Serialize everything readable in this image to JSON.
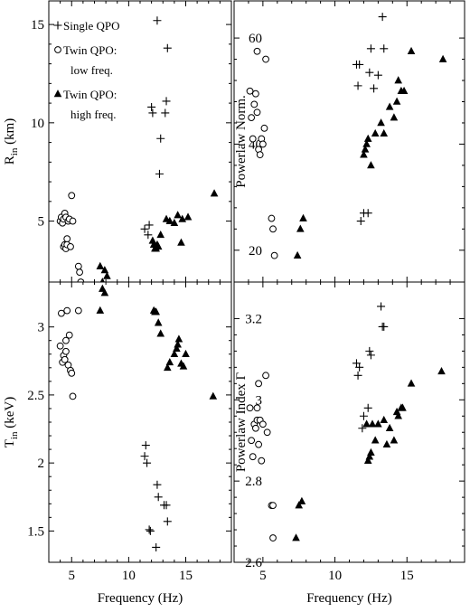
{
  "chart_data": [
    {
      "type": "scatter",
      "panel": "top-left",
      "xlabel": "Frequency (Hz)",
      "ylabel_main": "R",
      "ylabel_sub": "in",
      "ylabel_rest": " (km)",
      "xlim": [
        3,
        19
      ],
      "ylim": [
        1.9,
        16.2
      ],
      "xticks": [
        5,
        10,
        15
      ],
      "yticks": [
        5,
        10,
        15
      ],
      "legend": {
        "placement": "top-left",
        "entries": [
          {
            "marker": "plus",
            "lines": [
              "Single QPO"
            ]
          },
          {
            "marker": "circle",
            "lines": [
              "Twin QPO:",
              "low freq."
            ]
          },
          {
            "marker": "triangle",
            "lines": [
              "Twin QPO:",
              "high freq."
            ]
          }
        ]
      },
      "series": [
        {
          "marker": "plus",
          "x": [
            11.4,
            11.7,
            11.8,
            12.0,
            12.1,
            12.5,
            12.7,
            12.8,
            13.2,
            13.3,
            13.4
          ],
          "y": [
            4.6,
            4.3,
            4.8,
            10.8,
            10.5,
            15.2,
            7.4,
            9.2,
            10.5,
            11.1,
            13.8
          ]
        },
        {
          "marker": "circle",
          "x": [
            4.0,
            4.1,
            4.2,
            4.3,
            4.3,
            4.4,
            4.4,
            4.5,
            4.5,
            4.6,
            4.6,
            4.7,
            4.8,
            4.9,
            5.0,
            5.1,
            5.6,
            5.7,
            5.8
          ],
          "y": [
            5.0,
            5.2,
            4.9,
            3.7,
            5.1,
            5.4,
            3.8,
            5.2,
            3.6,
            4.1,
            3.8,
            5.0,
            5.1,
            3.7,
            6.3,
            5.0,
            2.7,
            2.4,
            1.9
          ]
        },
        {
          "marker": "triangle",
          "x": [
            7.5,
            7.7,
            7.9,
            8.1,
            12.1,
            12.2,
            12.3,
            12.4,
            12.5,
            12.6,
            12.8,
            13.3,
            13.6,
            14.0,
            14.3,
            14.6,
            14.7,
            15.2,
            17.5
          ],
          "y": [
            2.7,
            1.9,
            2.5,
            2.2,
            4.0,
            3.8,
            3.6,
            3.6,
            3.8,
            3.7,
            4.3,
            5.1,
            5.0,
            4.9,
            5.3,
            3.9,
            5.1,
            5.2,
            6.4
          ]
        }
      ]
    },
    {
      "type": "scatter",
      "panel": "top-right",
      "xlabel": "Frequency (Hz)",
      "ylabel_main": "Powerlaw Norm.",
      "xlim": [
        3,
        19
      ],
      "ylim": [
        14,
        67
      ],
      "xticks": [
        5,
        10,
        15
      ],
      "yticks": [
        20,
        40,
        60
      ],
      "series": [
        {
          "marker": "plus",
          "x": [
            11.5,
            11.6,
            11.7,
            11.8,
            12.0,
            12.3,
            12.4,
            12.5,
            12.7,
            13.0,
            13.3,
            13.4
          ],
          "y": [
            55.0,
            51.0,
            55.0,
            25.5,
            27.0,
            27.0,
            53.5,
            58.0,
            50.5,
            53.0,
            64.0,
            58.0
          ]
        },
        {
          "marker": "circle",
          "x": [
            4.1,
            4.2,
            4.3,
            4.4,
            4.5,
            4.6,
            4.6,
            4.7,
            4.8,
            4.9,
            5.0,
            5.1,
            5.2,
            5.6,
            5.7,
            5.8
          ],
          "y": [
            50.0,
            45.0,
            41.0,
            47.5,
            49.5,
            46.0,
            57.5,
            39.0,
            38.0,
            41.0,
            40.0,
            43.0,
            56.0,
            26.0,
            24.0,
            19.0
          ]
        },
        {
          "marker": "triangle",
          "x": [
            7.4,
            7.6,
            7.8,
            12.0,
            12.1,
            12.2,
            12.3,
            12.5,
            12.8,
            13.2,
            13.4,
            13.8,
            14.1,
            14.3,
            14.4,
            14.6,
            14.8,
            15.3,
            17.5
          ],
          "y": [
            19.0,
            24.0,
            26.0,
            38.0,
            39.0,
            40.0,
            41.0,
            36.0,
            42.0,
            44.0,
            42.0,
            47.0,
            45.0,
            48.0,
            52.0,
            50.0,
            50.0,
            57.5,
            56.0
          ]
        }
      ]
    },
    {
      "type": "scatter",
      "panel": "bottom-left",
      "xlabel": "Frequency (Hz)",
      "ylabel_main": "T",
      "ylabel_sub": "in",
      "ylabel_rest": " (keV)",
      "xlim": [
        3,
        19
      ],
      "ylim": [
        1.27,
        3.33
      ],
      "xticks": [
        5,
        10,
        15
      ],
      "yticks": [
        1.5,
        2,
        2.5,
        3
      ],
      "series": [
        {
          "marker": "plus",
          "x": [
            11.4,
            11.5,
            11.6,
            11.8,
            11.9,
            12.4,
            12.5,
            12.6,
            13.1,
            13.3,
            13.4
          ],
          "y": [
            2.05,
            2.13,
            2.0,
            1.51,
            1.5,
            1.38,
            1.84,
            1.75,
            1.69,
            1.69,
            1.57
          ]
        },
        {
          "marker": "circle",
          "x": [
            4.0,
            4.1,
            4.2,
            4.3,
            4.4,
            4.5,
            4.5,
            4.6,
            4.7,
            4.8,
            4.9,
            5.0,
            5.1,
            5.6
          ],
          "y": [
            2.86,
            3.1,
            2.74,
            2.79,
            2.76,
            2.9,
            2.82,
            3.12,
            2.72,
            2.94,
            2.68,
            2.66,
            2.49,
            3.12
          ]
        },
        {
          "marker": "triangle",
          "x": [
            7.5,
            7.7,
            7.9,
            12.2,
            12.3,
            12.4,
            12.6,
            12.8,
            13.4,
            13.6,
            14.0,
            14.2,
            14.3,
            14.4,
            14.6,
            14.8,
            15.0,
            17.4
          ],
          "y": [
            3.12,
            3.28,
            3.25,
            3.12,
            3.11,
            3.11,
            3.03,
            2.95,
            2.7,
            2.74,
            2.8,
            2.84,
            2.87,
            2.91,
            2.73,
            2.71,
            2.8,
            2.49
          ]
        }
      ]
    },
    {
      "type": "scatter",
      "panel": "bottom-right",
      "xlabel": "Frequency (Hz)",
      "ylabel_main": "Powerlaw Index Γ",
      "xlim": [
        3,
        19
      ],
      "ylim": [
        2.6,
        3.29
      ],
      "xticks": [
        5,
        10,
        15
      ],
      "yticks": [
        2.6,
        2.8,
        3,
        3.2
      ],
      "series": [
        {
          "marker": "plus",
          "x": [
            11.5,
            11.6,
            11.7,
            11.9,
            12.0,
            12.3,
            12.4,
            12.5,
            13.2,
            13.3,
            13.4
          ],
          "y": [
            3.09,
            3.06,
            3.08,
            2.93,
            2.96,
            2.98,
            3.12,
            3.11,
            3.23,
            3.18,
            3.18
          ]
        },
        {
          "marker": "circle",
          "x": [
            4.1,
            4.2,
            4.3,
            4.4,
            4.5,
            4.6,
            4.6,
            4.7,
            4.7,
            4.8,
            4.9,
            5.0,
            5.2,
            5.3,
            5.6,
            5.7,
            5.7
          ],
          "y": [
            2.98,
            2.9,
            2.86,
            2.94,
            2.93,
            2.98,
            2.95,
            3.04,
            2.89,
            2.95,
            2.85,
            2.94,
            3.06,
            2.92,
            2.74,
            2.74,
            2.66
          ]
        },
        {
          "marker": "triangle",
          "x": [
            7.3,
            7.5,
            7.7,
            12.2,
            12.3,
            12.4,
            12.5,
            12.6,
            12.8,
            13.0,
            13.4,
            13.6,
            13.8,
            14.1,
            14.3,
            14.4,
            14.6,
            14.7,
            15.3,
            17.4
          ],
          "y": [
            2.66,
            2.74,
            2.75,
            2.94,
            2.85,
            2.86,
            2.87,
            2.94,
            2.9,
            2.94,
            2.95,
            2.89,
            2.93,
            2.9,
            2.97,
            2.96,
            2.98,
            2.98,
            3.04,
            3.07
          ]
        }
      ]
    }
  ]
}
